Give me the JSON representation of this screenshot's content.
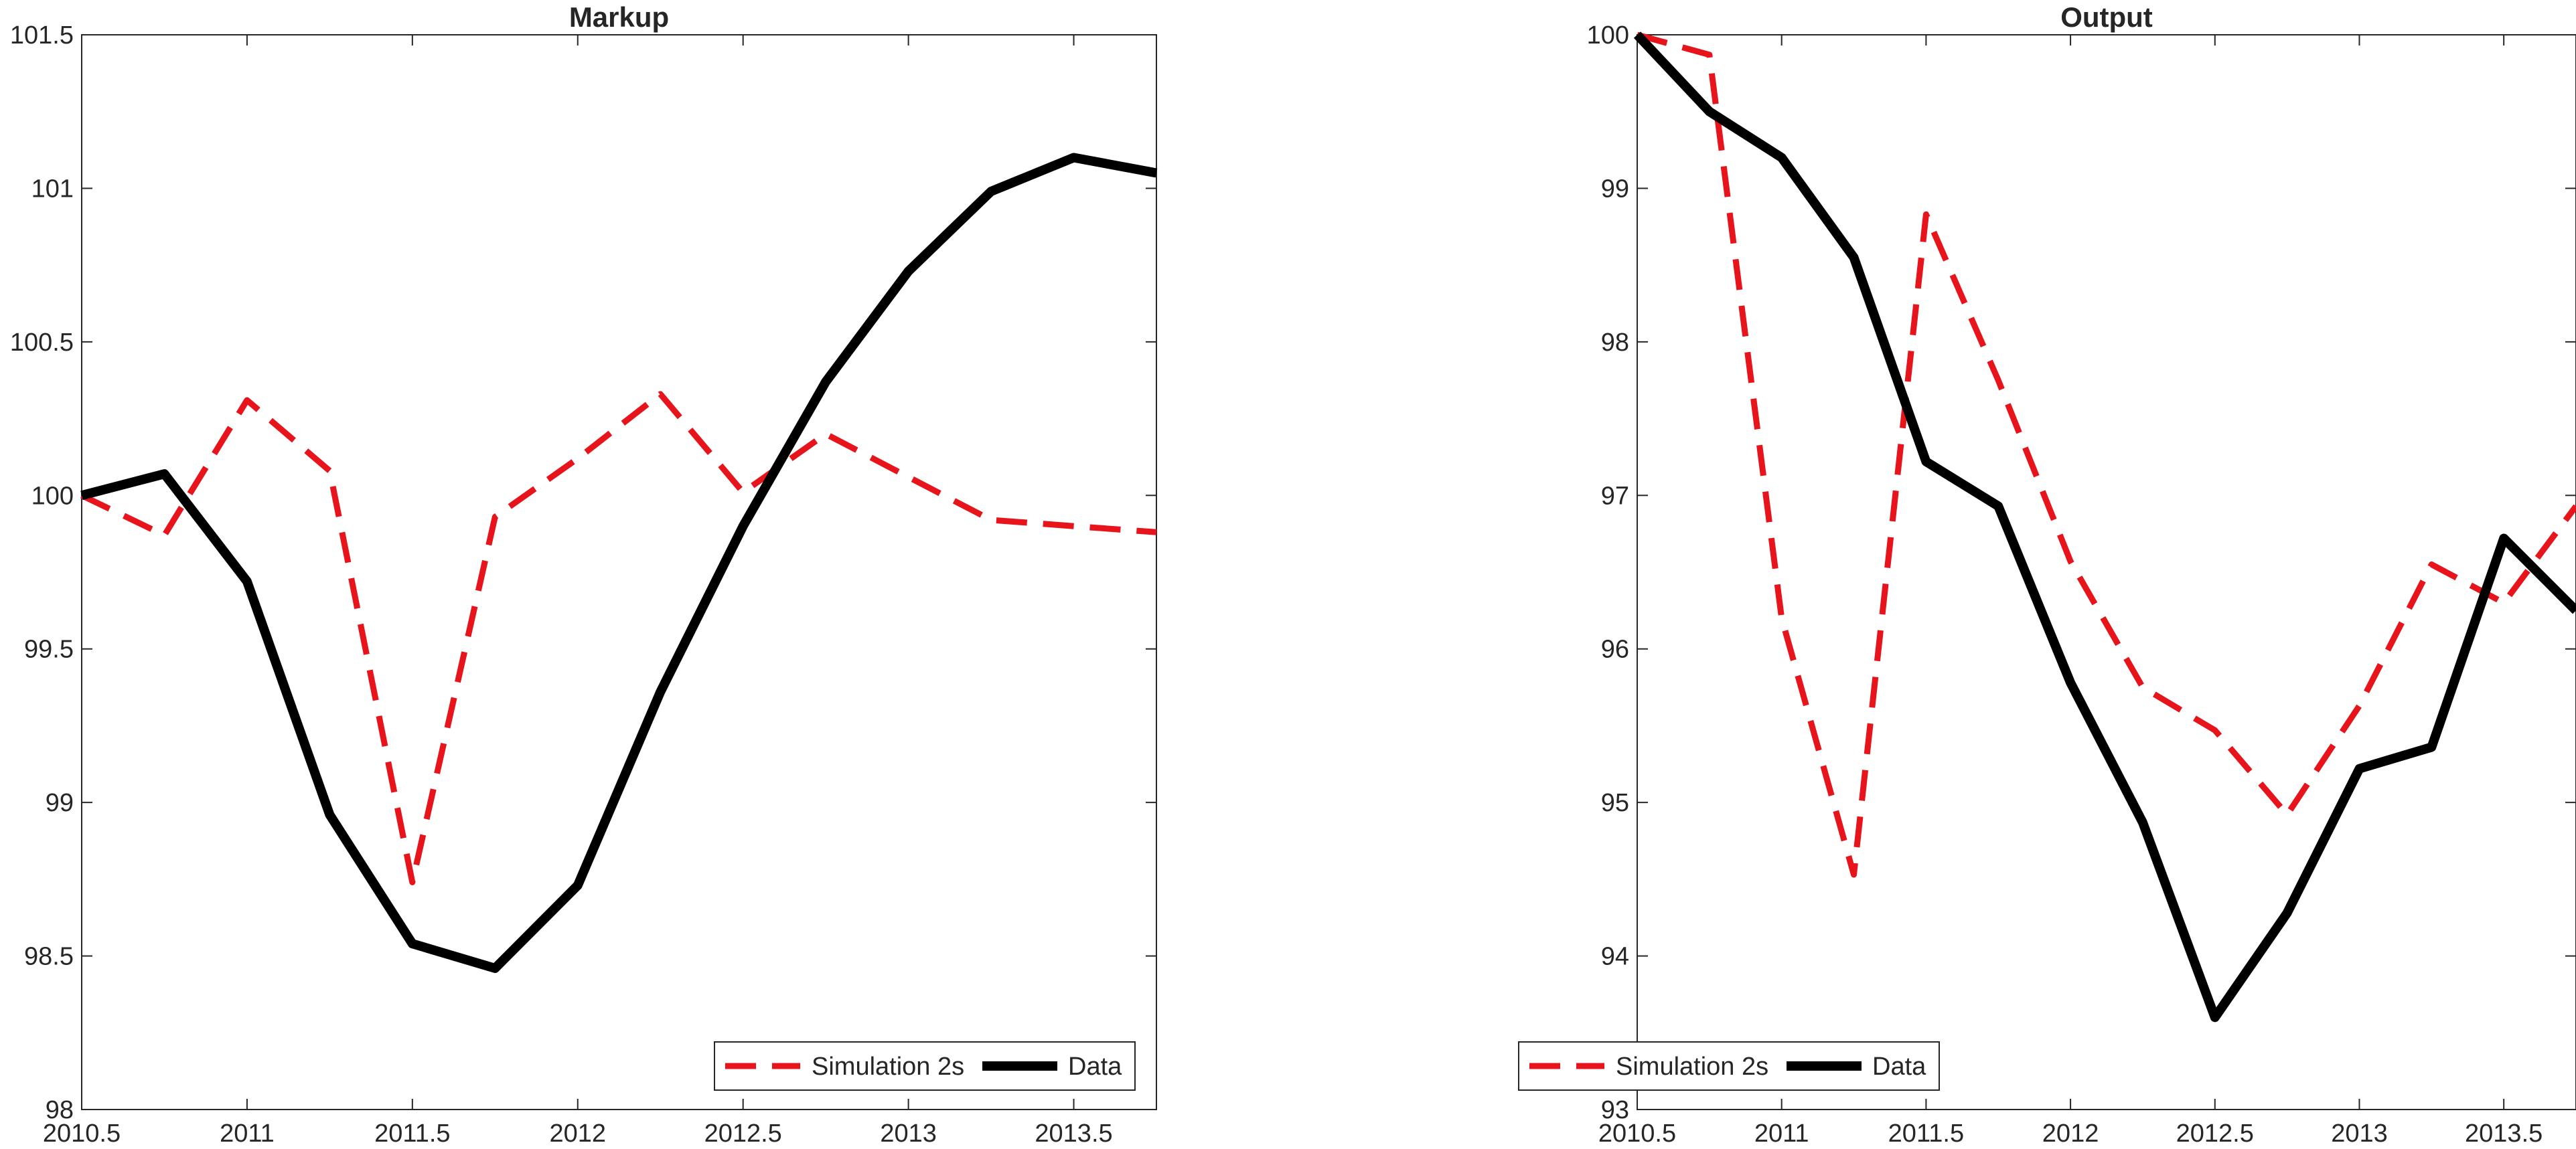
{
  "chart_data": [
    {
      "type": "line",
      "title": "Markup",
      "xlabel": "",
      "ylabel": "",
      "xlim": [
        2010.5,
        2013.75
      ],
      "ylim": [
        98,
        101.5
      ],
      "x_ticks": [
        2010.5,
        2011,
        2011.5,
        2012,
        2012.5,
        2013,
        2013.5
      ],
      "x_tick_labels": [
        "2010.5",
        "2011",
        "2011.5",
        "2012",
        "2012.5",
        "2013",
        "2013.5"
      ],
      "y_ticks": [
        98,
        98.5,
        99,
        99.5,
        100,
        100.5,
        101,
        101.5
      ],
      "y_tick_labels": [
        "98",
        "98.5",
        "99",
        "99.5",
        "100",
        "100.5",
        "101",
        "101.5"
      ],
      "grid": false,
      "legend_position": "bottom-right",
      "x": [
        2010.5,
        2010.75,
        2011,
        2011.25,
        2011.5,
        2011.75,
        2012,
        2012.25,
        2012.5,
        2012.75,
        2013,
        2013.25,
        2013.5,
        2013.75
      ],
      "series": [
        {
          "name": "Simulation 2s",
          "color": "#e8141c",
          "style": "dashed",
          "values": [
            100,
            99.87,
            100.31,
            100.08,
            98.74,
            99.93,
            100.12,
            100.33,
            100.01,
            100.2,
            100.06,
            99.92,
            99.9,
            99.88
          ]
        },
        {
          "name": "Data",
          "color": "#000000",
          "style": "solid",
          "values": [
            100,
            100.07,
            99.72,
            98.96,
            98.54,
            98.46,
            98.73,
            99.36,
            99.9,
            100.37,
            100.73,
            100.99,
            101.1,
            101.05
          ]
        }
      ]
    },
    {
      "type": "line",
      "title": "Output",
      "xlabel": "",
      "ylabel": "",
      "xlim": [
        2010.5,
        2013.75
      ],
      "ylim": [
        93,
        100
      ],
      "x_ticks": [
        2010.5,
        2011,
        2011.5,
        2012,
        2012.5,
        2013,
        2013.5
      ],
      "x_tick_labels": [
        "2010.5",
        "2011",
        "2011.5",
        "2012",
        "2012.5",
        "2013",
        "2013.5"
      ],
      "y_ticks": [
        93,
        94,
        95,
        96,
        97,
        98,
        99,
        100
      ],
      "y_tick_labels": [
        "93",
        "94",
        "95",
        "96",
        "97",
        "98",
        "99",
        "100"
      ],
      "grid": false,
      "legend_position": "bottom-left",
      "x": [
        2010.5,
        2010.75,
        2011,
        2011.25,
        2011.5,
        2011.75,
        2012,
        2012.25,
        2012.5,
        2012.75,
        2013,
        2013.25,
        2013.5,
        2013.75
      ],
      "series": [
        {
          "name": "Simulation 2s",
          "color": "#e8141c",
          "style": "dashed",
          "values": [
            100,
            99.87,
            96.2,
            94.53,
            98.83,
            97.75,
            96.57,
            95.75,
            95.47,
            94.92,
            95.63,
            96.55,
            96.3,
            96.93
          ]
        },
        {
          "name": "Data",
          "color": "#000000",
          "style": "solid",
          "values": [
            100,
            99.5,
            99.2,
            98.55,
            97.22,
            96.93,
            95.78,
            94.87,
            93.6,
            94.28,
            95.22,
            95.36,
            96.72,
            96.25
          ]
        }
      ]
    }
  ]
}
